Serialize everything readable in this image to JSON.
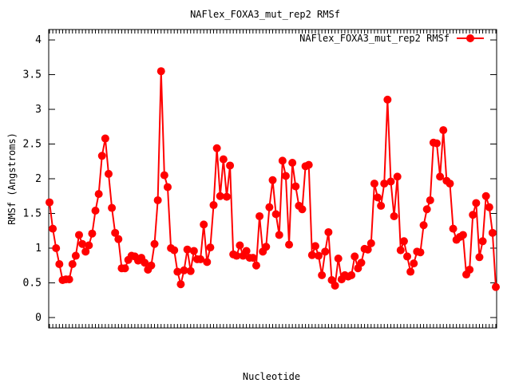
{
  "chart_data": {
    "type": "line",
    "title": "NAFlex_FOXA3_mut_rep2 RMSf",
    "xlabel": "Nucleotide",
    "ylabel": "RMSf (Angstroms)",
    "ylim": [
      -0.15,
      4.15
    ],
    "yticks": [
      0,
      0.5,
      1,
      1.5,
      2,
      2.5,
      3,
      3.5,
      4
    ],
    "ytick_labels": [
      "0",
      "0.5",
      "1",
      "1.5",
      "2",
      "2.5",
      "3",
      "3.5",
      "4"
    ],
    "grid": false,
    "legend_position": "top-right",
    "series": [
      {
        "name": "NAFlex_FOXA3_mut_rep2 RMSf",
        "color": "#ff0000",
        "marker": "circle",
        "values": [
          1.66,
          1.28,
          1.0,
          0.77,
          0.54,
          0.55,
          0.55,
          0.77,
          0.89,
          1.19,
          1.06,
          0.95,
          1.04,
          1.21,
          1.54,
          1.78,
          2.33,
          2.58,
          2.07,
          1.58,
          1.22,
          1.13,
          0.71,
          0.71,
          0.83,
          0.89,
          0.88,
          0.82,
          0.86,
          0.79,
          0.69,
          0.75,
          1.06,
          1.69,
          3.55,
          2.05,
          1.88,
          1.0,
          0.97,
          0.66,
          0.48,
          0.68,
          0.98,
          0.67,
          0.96,
          0.84,
          0.84,
          1.34,
          0.8,
          1.01,
          1.62,
          2.44,
          1.75,
          2.28,
          1.74,
          2.19,
          0.91,
          0.89,
          1.04,
          0.89,
          0.96,
          0.86,
          0.86,
          0.75,
          1.46,
          0.95,
          1.02,
          1.59,
          1.98,
          1.49,
          1.19,
          2.26,
          2.04,
          1.05,
          2.23,
          1.89,
          1.61,
          1.56,
          2.18,
          2.2,
          0.9,
          1.03,
          0.89,
          0.61,
          0.95,
          1.23,
          0.54,
          0.46,
          0.85,
          0.55,
          0.61,
          0.59,
          0.61,
          0.88,
          0.71,
          0.79,
          0.99,
          0.98,
          1.07,
          1.93,
          1.73,
          1.61,
          1.93,
          3.14,
          1.96,
          1.46,
          2.03,
          0.97,
          1.1,
          0.88,
          0.66,
          0.78,
          0.95,
          0.94,
          1.33,
          1.56,
          1.69,
          2.52,
          2.51,
          2.03,
          2.7,
          1.97,
          1.93,
          1.28,
          1.12,
          1.16,
          1.19,
          0.62,
          0.69,
          1.48,
          1.65,
          0.87,
          1.1,
          1.75,
          1.59,
          1.22,
          0.44
        ]
      }
    ]
  }
}
